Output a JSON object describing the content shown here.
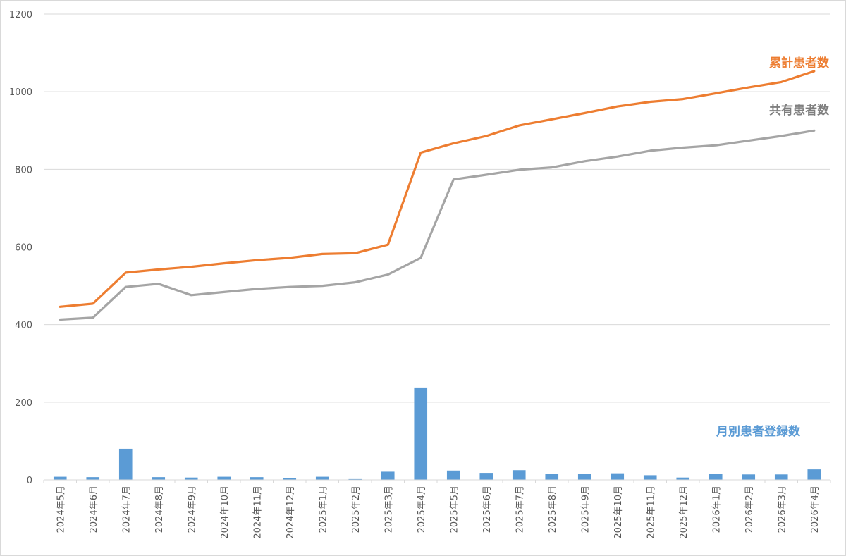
{
  "chart_data": {
    "type": "bar+line",
    "categories": [
      "2024年5月",
      "2024年6月",
      "2024年7月",
      "2024年8月",
      "2024年9月",
      "2024年10月",
      "2024年11月",
      "2024年12月",
      "2025年1月",
      "2025年2月",
      "2025年3月",
      "2025年4月",
      "2025年5月",
      "2025年6月",
      "2025年7月",
      "2025年8月",
      "2025年9月",
      "2025年10月",
      "2025年11月",
      "2025年12月",
      "2026年1月",
      "2026年2月",
      "2026年3月",
      "2026年4月"
    ],
    "yticks": [
      "0",
      "200",
      "400",
      "600",
      "800",
      "1000",
      "1200"
    ],
    "ylim": [
      0,
      1200
    ],
    "grid": true,
    "series": [
      {
        "name": "累計患者数",
        "kind": "line",
        "color": "#ED7D31",
        "values": [
          446,
          454,
          534,
          542,
          549,
          558,
          566,
          572,
          582,
          584,
          606,
          843,
          867,
          886,
          913,
          929,
          945,
          962,
          974,
          981,
          996,
          1011,
          1025,
          1053
        ]
      },
      {
        "name": "共有患者数",
        "kind": "line",
        "color": "#A5A5A5",
        "values": [
          413,
          418,
          497,
          505,
          476,
          484,
          492,
          497,
          500,
          509,
          529,
          572,
          774,
          786,
          799,
          805,
          821,
          833,
          848,
          856,
          862,
          874,
          886,
          900
        ]
      },
      {
        "name": "月別患者登録数",
        "kind": "bar",
        "color": "#5B9BD5",
        "values": [
          8,
          7,
          80,
          7,
          6,
          8,
          7,
          4,
          8,
          2,
          21,
          238,
          24,
          18,
          25,
          16,
          16,
          17,
          12,
          6,
          16,
          14,
          14,
          27
        ]
      }
    ]
  }
}
